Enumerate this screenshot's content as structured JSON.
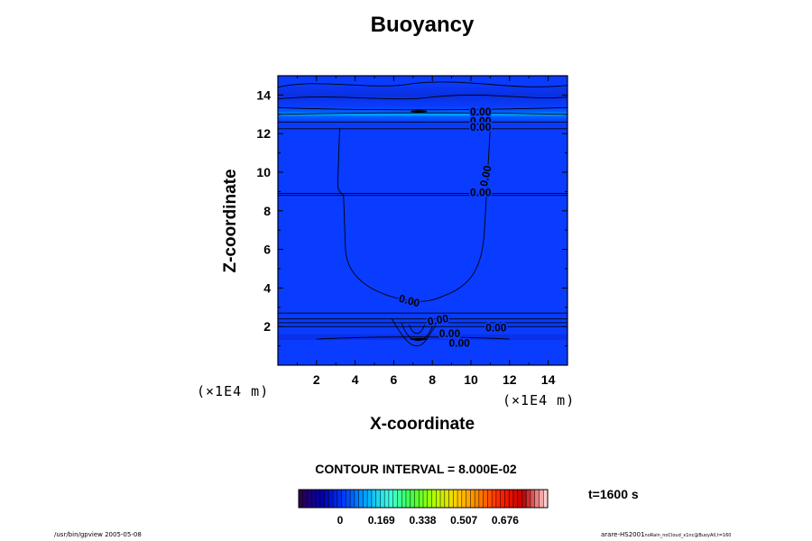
{
  "chart_data": {
    "type": "heatmap",
    "title": "Buoyancy",
    "xlabel": "X-coordinate",
    "ylabel": "Z-coordinate",
    "x_unit": "(×1E4 m)",
    "z_unit": "(×1E4 m)",
    "xlim": [
      0,
      15
    ],
    "ylim": [
      0,
      15
    ],
    "x_ticks": [
      "2",
      "4",
      "6",
      "8",
      "10",
      "12",
      "14"
    ],
    "y_ticks": [
      "2",
      "4",
      "6",
      "8",
      "10",
      "12",
      "14"
    ],
    "contour_interval": "CONTOUR INTERVAL = 8.000E-02",
    "contour_labels": [
      {
        "text": "0.00",
        "x": 10.5,
        "z": 13.1
      },
      {
        "text": "0.00",
        "x": 10.5,
        "z": 12.6
      },
      {
        "text": "0.00",
        "x": 10.5,
        "z": 12.3
      },
      {
        "text": "0.00",
        "x": 10.8,
        "z": 9.8,
        "rotate": -78
      },
      {
        "text": "0.00",
        "x": 10.5,
        "z": 8.9
      },
      {
        "text": "0.00",
        "x": 6.8,
        "z": 3.3,
        "rotate": 15
      },
      {
        "text": "0.00",
        "x": 8.3,
        "z": 2.3,
        "rotate": -10
      },
      {
        "text": "0.00",
        "x": 11.3,
        "z": 1.9
      },
      {
        "text": "0.00",
        "x": 8.9,
        "z": 1.6
      },
      {
        "text": "0.00",
        "x": 9.4,
        "z": 1.1
      }
    ],
    "colorbar": {
      "tick_labels": [
        "0",
        "0.169",
        "0.338",
        "0.507",
        "0.676"
      ],
      "tick_values": [
        0,
        0.169,
        0.338,
        0.507,
        0.676
      ],
      "range": [
        -0.17,
        0.85
      ],
      "colormap": [
        "#2a0050",
        "#0000b4",
        "#0040ff",
        "#00b0ff",
        "#40ffe0",
        "#40ff40",
        "#b0ff00",
        "#ffd000",
        "#ff8000",
        "#ff2000",
        "#c00000",
        "#ffd0d0"
      ]
    },
    "field_color": "#0a3cff",
    "time_label": "t=1600 s"
  },
  "footer": {
    "left": "/usr/bin/gpview 2005-05-08",
    "right_main": "arare-HS2001",
    "right_sub": "noRain_noCloud_x1nc@BuoyAll,t=160"
  }
}
